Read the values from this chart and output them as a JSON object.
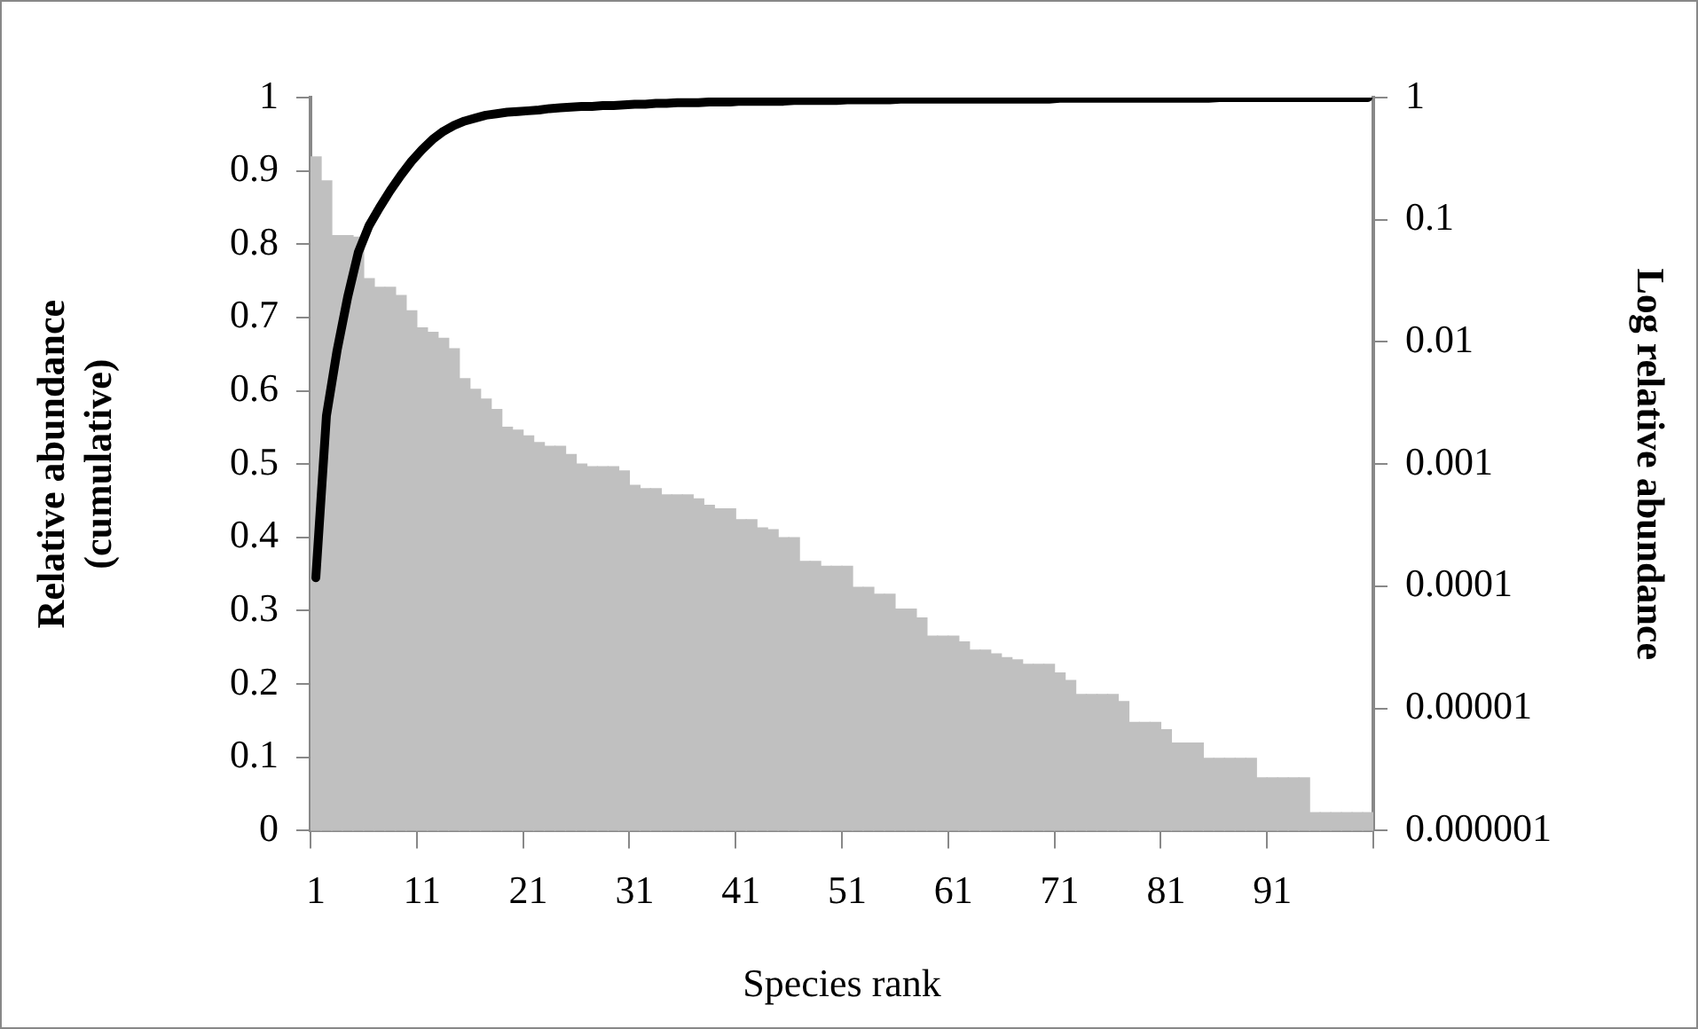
{
  "chart_data": {
    "type": "bar",
    "xlabel": "Species rank",
    "ylabel": "Relative abundance\n(cumulative)",
    "y2label": "Log relative abundance",
    "categories": [
      "1",
      null,
      null,
      null,
      null,
      null,
      null,
      null,
      null,
      null,
      "11",
      null,
      null,
      null,
      null,
      null,
      null,
      null,
      null,
      null,
      "21",
      null,
      null,
      null,
      null,
      null,
      null,
      null,
      null,
      null,
      "31",
      null,
      null,
      null,
      null,
      null,
      null,
      null,
      null,
      null,
      "41",
      null,
      null,
      null,
      null,
      null,
      null,
      null,
      null,
      null,
      "51",
      null,
      null,
      null,
      null,
      null,
      null,
      null,
      null,
      null,
      "61",
      null,
      null,
      null,
      null,
      null,
      null,
      null,
      null,
      null,
      "71",
      null,
      null,
      null,
      null,
      null,
      null,
      null,
      null,
      null,
      "81",
      null,
      null,
      null,
      null,
      null,
      null,
      null,
      null,
      null,
      "91",
      null,
      null,
      null,
      null,
      null,
      null,
      null,
      null,
      null
    ],
    "series": [
      {
        "axis": "y2",
        "color": "#c0c0c0",
        "values": [
          0.327,
          0.208,
          0.074,
          0.074,
          0.072,
          0.033,
          0.028,
          0.028,
          0.024,
          0.018,
          0.013,
          0.012,
          0.0107,
          0.0088,
          0.005,
          0.0041,
          0.0034,
          0.0028,
          0.002,
          0.0019,
          0.0017,
          0.0015,
          0.0014,
          0.0014,
          0.0012,
          0.001,
          0.00095,
          0.00095,
          0.00095,
          0.00088,
          0.00067,
          0.00063,
          0.00063,
          0.00056,
          0.00056,
          0.00056,
          0.00052,
          0.00046,
          0.00043,
          0.00043,
          0.00035,
          0.00035,
          0.0003,
          0.00029,
          0.00025,
          0.00025,
          0.00016,
          0.00016,
          0.000146,
          0.000146,
          0.000146,
          9.8e-05,
          9.8e-05,
          8.6e-05,
          8.6e-05,
          6.5e-05,
          6.5e-05,
          5.5e-05,
          3.9e-05,
          3.9e-05,
          3.9e-05,
          3.5e-05,
          3e-05,
          3e-05,
          2.8e-05,
          2.6e-05,
          2.5e-05,
          2.3e-05,
          2.3e-05,
          2.3e-05,
          1.95e-05,
          1.69e-05,
          1.3e-05,
          1.3e-05,
          1.3e-05,
          1.3e-05,
          1.14e-05,
          7.7e-06,
          7.7e-06,
          7.7e-06,
          6.7e-06,
          5.2e-06,
          5.2e-06,
          5.2e-06,
          3.9e-06,
          3.9e-06,
          3.9e-06,
          3.9e-06,
          3.9e-06,
          2.7e-06,
          2.7e-06,
          2.7e-06,
          2.7e-06,
          2.7e-06,
          1.4e-06,
          1.4e-06,
          1.4e-06,
          1.4e-06,
          1.4e-06,
          1.4e-06
        ]
      },
      {
        "type": "line",
        "color": "#000000",
        "values": [
          0.345,
          0.566,
          0.655,
          0.728,
          0.789,
          0.825,
          0.85,
          0.873,
          0.894,
          0.913,
          0.929,
          0.943,
          0.954,
          0.962,
          0.968,
          0.972,
          0.976,
          0.978,
          0.98,
          0.981,
          0.982,
          0.983,
          0.985,
          0.986,
          0.987,
          0.988,
          0.988,
          0.989,
          0.989,
          0.99,
          0.991,
          0.991,
          0.992,
          0.992,
          0.993,
          0.993,
          0.993,
          0.994,
          0.994,
          0.994,
          0.995,
          0.995,
          0.995,
          0.995,
          0.995,
          0.996,
          0.996,
          0.996,
          0.996,
          0.996,
          0.997,
          0.997,
          0.997,
          0.997,
          0.997,
          0.998,
          0.998,
          0.998,
          0.998,
          0.998,
          0.998,
          0.998,
          0.998,
          0.998,
          0.998,
          0.998,
          0.998,
          0.998,
          0.998,
          0.998,
          0.999,
          0.999,
          0.999,
          0.999,
          0.999,
          0.999,
          0.999,
          0.999,
          0.999,
          0.999,
          0.999,
          0.999,
          0.999,
          0.999,
          0.999,
          1,
          1,
          1,
          1,
          1,
          1,
          1,
          1,
          1,
          1,
          1,
          1,
          1,
          1,
          1
        ]
      }
    ],
    "ylim": [
      0,
      1
    ],
    "yticks": [
      0,
      0.1,
      0.2,
      0.3,
      0.4,
      0.5,
      0.6,
      0.7,
      0.8,
      0.9,
      1
    ],
    "y2lim": [
      1e-06,
      1
    ],
    "y2ticks": [
      {
        "value": 1e-06,
        "label": "0.000001"
      },
      {
        "value": 1e-05,
        "label": "0.00001"
      },
      0.0001,
      0.001,
      0.01,
      0.1,
      1
    ],
    "log": "y2",
    "marker": "none",
    "line_style": "solid"
  }
}
